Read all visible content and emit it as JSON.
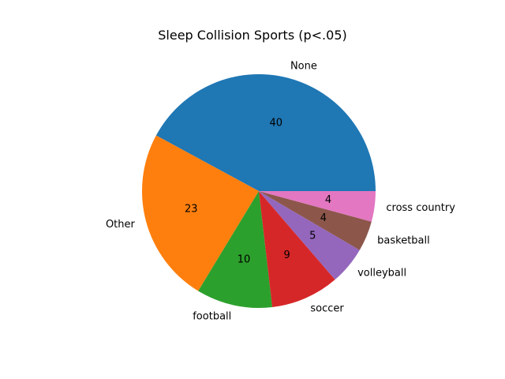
{
  "chart_data": {
    "type": "pie",
    "title": "Sleep Collision Sports (p<.05)",
    "labels": [
      "None",
      "Other",
      "football",
      "soccer",
      "volleyball",
      "basketball",
      "cross country"
    ],
    "values": [
      40,
      23,
      10,
      9,
      5,
      4,
      4
    ],
    "colors": [
      "#1f77b4",
      "#ff7f0e",
      "#2ca02c",
      "#d62728",
      "#9467bd",
      "#8c564b",
      "#e377c2"
    ],
    "start_angle_deg": 0,
    "direction": "counterclockwise",
    "legend": "none"
  }
}
